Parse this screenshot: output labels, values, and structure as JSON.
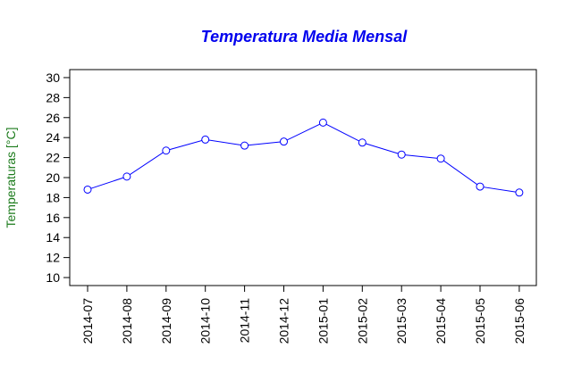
{
  "chart_data": {
    "type": "line",
    "title": "Temperatura Media Mensal",
    "xlabel": "",
    "ylabel": "Temperaturas [°C]",
    "categories": [
      "2014-07",
      "2014-08",
      "2014-09",
      "2014-10",
      "2014-11",
      "2014-12",
      "2015-01",
      "2015-02",
      "2015-03",
      "2015-04",
      "2015-05",
      "2015-06"
    ],
    "series": [
      {
        "name": "Temperatura",
        "values": [
          18.8,
          20.1,
          22.7,
          23.8,
          23.2,
          23.6,
          25.5,
          23.5,
          22.3,
          21.9,
          19.1,
          18.5
        ]
      }
    ],
    "yticks": [
      10,
      12,
      14,
      16,
      18,
      20,
      22,
      24,
      26,
      28,
      30
    ],
    "ylim": [
      9.2,
      30.8
    ],
    "grid": false,
    "colors": {
      "line": "#0000ff",
      "marker": "#0000ff",
      "title": "#0000ee",
      "ylabel": "#1a7a1a"
    }
  }
}
